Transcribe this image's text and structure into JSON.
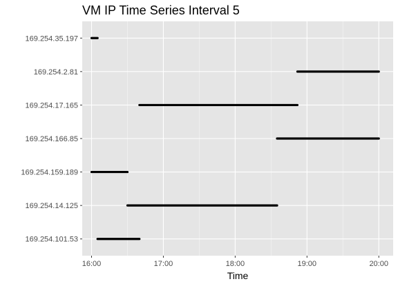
{
  "chart_data": {
    "type": "scatter",
    "title": "VM IP Time Series Interval 5",
    "xlabel": "Time",
    "ylabel": "",
    "x_ticks": [
      "16:00",
      "17:00",
      "18:00",
      "19:00",
      "20:00"
    ],
    "x_range_hours": [
      15.87,
      20.2
    ],
    "categories": [
      "169.254.35.197",
      "169.254.2.81",
      "169.254.17.165",
      "169.254.166.85",
      "169.254.159.189",
      "169.254.14.125",
      "169.254.101.53"
    ],
    "segments": [
      {
        "ip": "169.254.35.197",
        "start": "16:00",
        "end": "16:05"
      },
      {
        "ip": "169.254.2.81",
        "start": "18:52",
        "end": "20:00"
      },
      {
        "ip": "169.254.17.165",
        "start": "16:40",
        "end": "18:52"
      },
      {
        "ip": "169.254.166.85",
        "start": "18:35",
        "end": "20:00"
      },
      {
        "ip": "169.254.159.189",
        "start": "16:00",
        "end": "16:30"
      },
      {
        "ip": "169.254.14.125",
        "start": "16:30",
        "end": "18:35"
      },
      {
        "ip": "169.254.101.53",
        "start": "16:05",
        "end": "16:40"
      }
    ],
    "grid": true,
    "point_color": "#000000",
    "panel_color": "#e5e5e5",
    "grid_color": "#ffffff"
  }
}
